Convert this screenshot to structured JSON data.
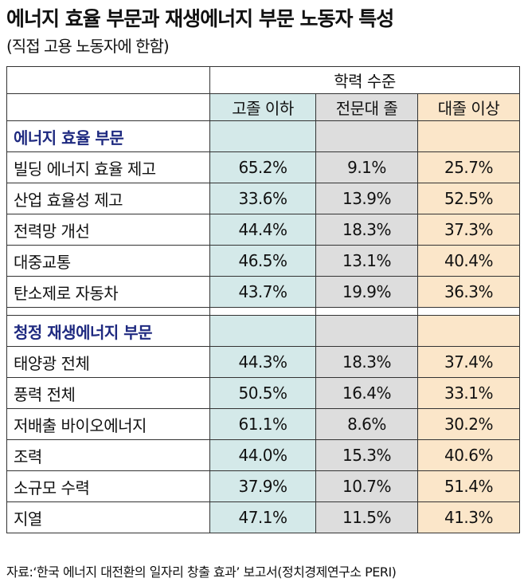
{
  "title": "에너지 효율 부문과 재생에너지 부문 노동자 특성",
  "subtitle": "(직접 고용 노동자에 한함)",
  "table": {
    "group_header": "학력 수준",
    "columns": [
      "고졸 이하",
      "전문대 졸",
      "대졸 이상"
    ],
    "sections": [
      {
        "name": "에너지 효율 부문",
        "rows": [
          {
            "label": "빌딩 에너지 효율 제고",
            "values": [
              "65.2%",
              "9.1%",
              "25.7%"
            ]
          },
          {
            "label": "산업 효율성 제고",
            "values": [
              "33.6%",
              "13.9%",
              "52.5%"
            ]
          },
          {
            "label": "전력망 개선",
            "values": [
              "44.4%",
              "18.3%",
              "37.3%"
            ]
          },
          {
            "label": "대중교통",
            "values": [
              "46.5%",
              "13.1%",
              "40.4%"
            ]
          },
          {
            "label": "탄소제로 자동차",
            "values": [
              "43.7%",
              "19.9%",
              "36.3%"
            ]
          }
        ]
      },
      {
        "name": "청정 재생에너지 부문",
        "rows": [
          {
            "label": "태양광 전체",
            "values": [
              "44.3%",
              "18.3%",
              "37.4%"
            ]
          },
          {
            "label": "풍력 전체",
            "values": [
              "50.5%",
              "16.4%",
              "33.1%"
            ]
          },
          {
            "label": "저배출 바이오에너지",
            "values": [
              "61.1%",
              "8.6%",
              "30.2%"
            ]
          },
          {
            "label": "조력",
            "values": [
              "44.0%",
              "15.3%",
              "40.6%"
            ]
          },
          {
            "label": "소규모 수력",
            "values": [
              "37.9%",
              "10.7%",
              "51.4%"
            ]
          },
          {
            "label": "지열",
            "values": [
              "47.1%",
              "11.5%",
              "41.3%"
            ]
          }
        ]
      }
    ]
  },
  "source": "자료:‘한국 에너지 대전환의 일자리 창출 효과’ 보고서(정치경제연구소 PERI)",
  "colors": {
    "col1": "#d4e9e9",
    "col2": "#dddddd",
    "col3": "#fbe6c9",
    "section": "#1f2a80"
  }
}
